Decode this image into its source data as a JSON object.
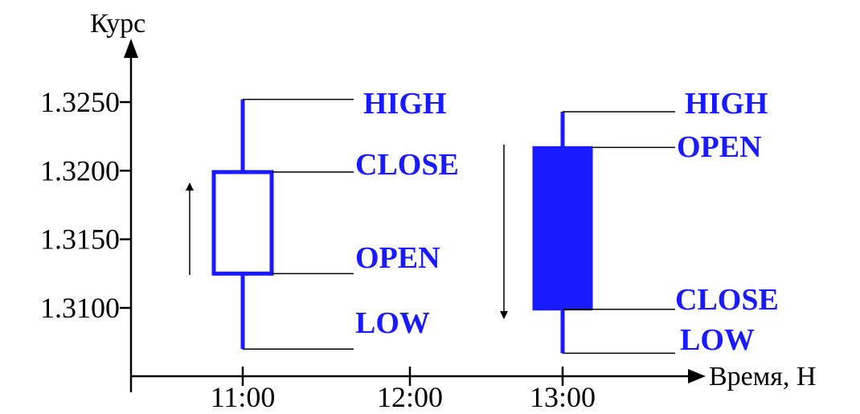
{
  "chart_data": {
    "type": "candlestick",
    "ylabel": "Курс",
    "xlabel": "Время, Н",
    "y_ticks": [
      "1.3250",
      "1.3200",
      "1.3150",
      "1.3100"
    ],
    "y_tick_values": [
      1.325,
      1.32,
      1.315,
      1.31
    ],
    "x_ticks": [
      "11:00",
      "12:00",
      "13:00"
    ],
    "ylim": [
      1.3062,
      1.3325
    ],
    "grid": false,
    "colors": {
      "candle": "#1a1aff",
      "label": "#1a1aff",
      "axis": "#000000",
      "guide": "#000000"
    },
    "candles": [
      {
        "time": "11:00",
        "high": 1.3252,
        "open": 1.3125,
        "close": 1.3199,
        "low": 1.307,
        "direction": "up",
        "filled": false,
        "labels": {
          "high": "HIGH",
          "close": "CLOSE",
          "open": "OPEN",
          "low": "LOW"
        }
      },
      {
        "time": "13:00",
        "high": 1.3243,
        "open": 1.3217,
        "close": 1.3099,
        "low": 1.3067,
        "direction": "down",
        "filled": true,
        "labels": {
          "high": "HIGH",
          "open": "OPEN",
          "close": "CLOSE",
          "low": "LOW"
        }
      }
    ]
  }
}
